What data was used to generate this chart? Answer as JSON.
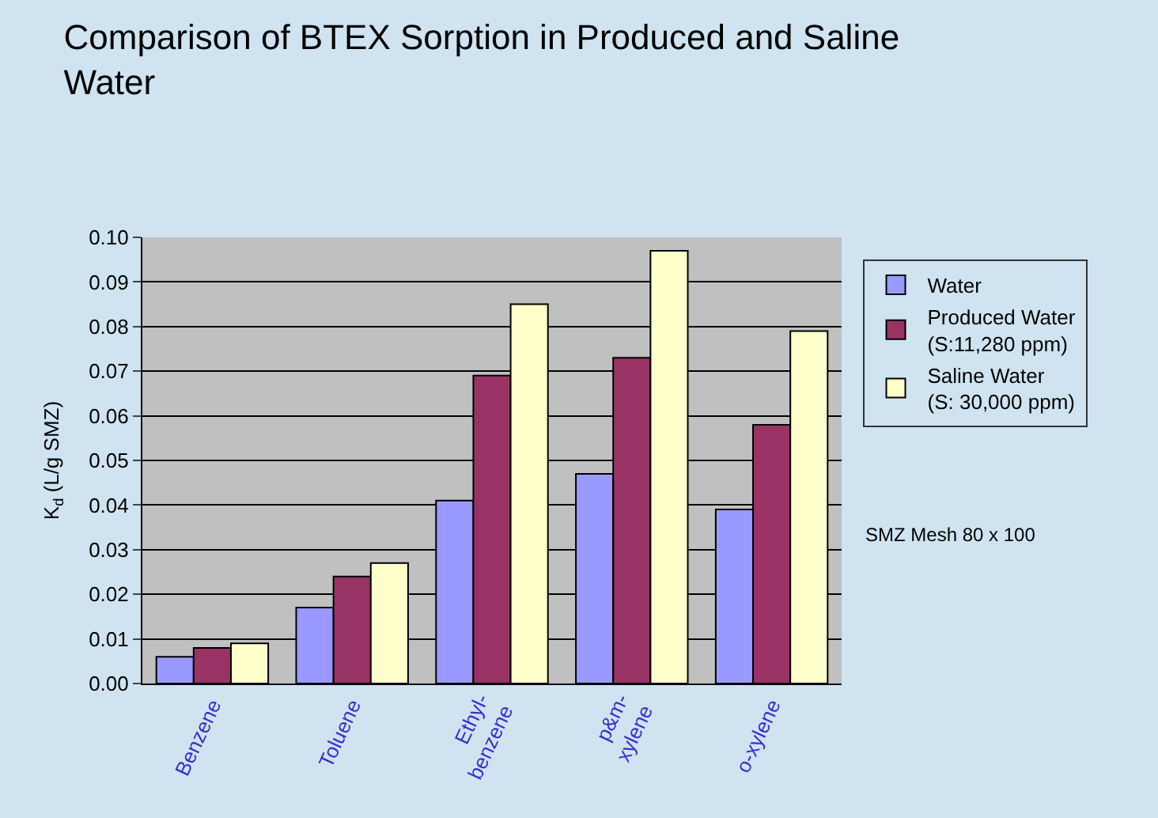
{
  "chart_data": {
    "type": "bar",
    "title": "Comparison of BTEX Sorption in Produced and Saline\nWater",
    "ylabel": "K$_{d}$ (L/g SMZ)",
    "categories": [
      "Benzene",
      "Toluene",
      "Ethyl-\nbenzene",
      "p&m-\nxylene",
      "o-xylene"
    ],
    "series": [
      {
        "name": "Water",
        "color": "#9999ff",
        "values": [
          0.006,
          0.017,
          0.041,
          0.047,
          0.039
        ]
      },
      {
        "name": "Produced Water\n(S:11,280 ppm)",
        "color": "#993366",
        "values": [
          0.008,
          0.024,
          0.069,
          0.073,
          0.058
        ]
      },
      {
        "name": "Saline Water\n(S: 30,000 ppm)",
        "color": "#ffffcc",
        "values": [
          0.009,
          0.027,
          0.085,
          0.097,
          0.079
        ]
      }
    ],
    "ylim": [
      0,
      0.1
    ],
    "yticks": [
      {
        "value": 0,
        "label": "0.00"
      },
      {
        "value": 0.01,
        "label": "0.01"
      },
      {
        "value": 0.02,
        "label": "0.02"
      },
      {
        "value": 0.03,
        "label": "0.03"
      },
      {
        "value": 0.04,
        "label": "0.04"
      },
      {
        "value": 0.05,
        "label": "0.05"
      },
      {
        "value": 0.06,
        "label": "0.06"
      },
      {
        "value": 0.07,
        "label": "0.07"
      },
      {
        "value": 0.08,
        "label": "0.08"
      },
      {
        "value": 0.09,
        "label": "0.09"
      },
      {
        "value": 0.1,
        "label": "0.10"
      }
    ],
    "grid": "y",
    "legend": "right",
    "annotations": [
      "SMZ Mesh 80 x 100"
    ]
  }
}
